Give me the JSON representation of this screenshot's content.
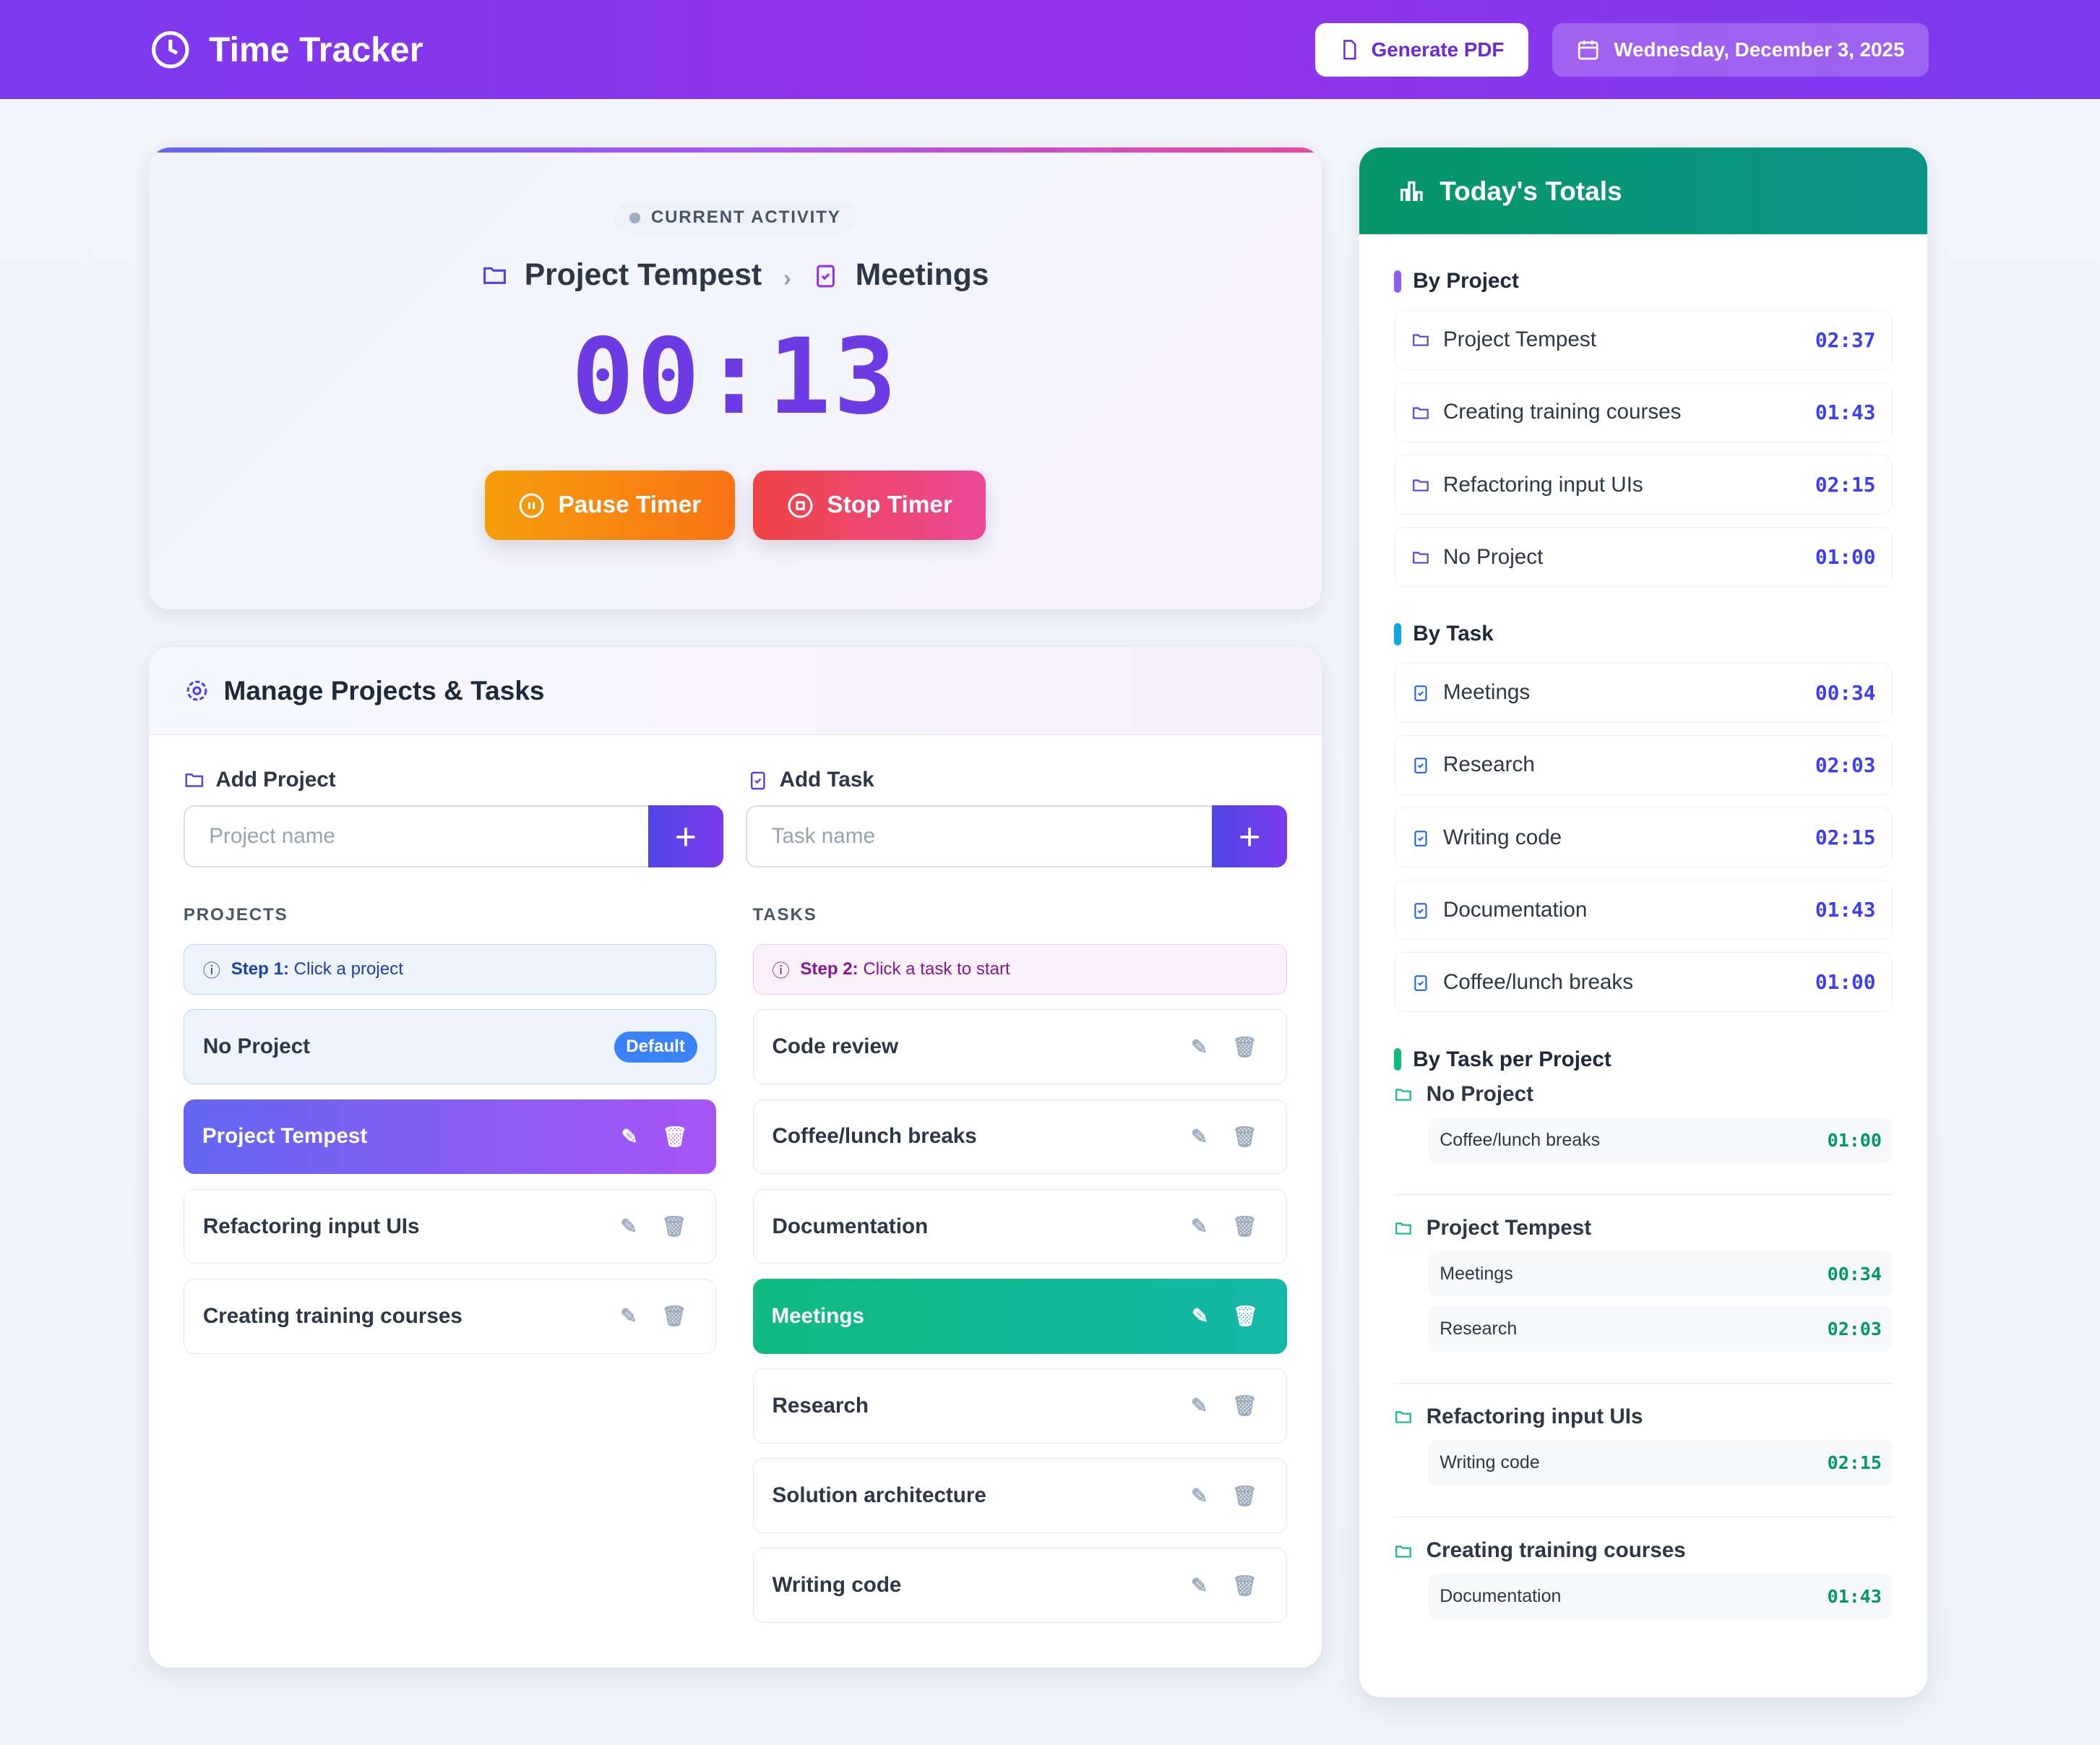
{
  "header": {
    "title": "Time Tracker",
    "pdf_label": "Generate PDF",
    "date": "Wednesday, December 3, 2025"
  },
  "timer": {
    "status": "CURRENT ACTIVITY",
    "project": "Project Tempest",
    "task": "Meetings",
    "elapsed": "00:13",
    "pause_label": "Pause Timer",
    "stop_label": "Stop Timer"
  },
  "manage": {
    "title": "Manage Projects & Tasks",
    "add_project": {
      "label": "Add Project",
      "placeholder": "Project name"
    },
    "add_task": {
      "label": "Add Task",
      "placeholder": "Task name"
    },
    "projects_heading": "PROJECTS",
    "tasks_heading": "TASKS",
    "project_step": {
      "bold": "Step 1:",
      "text": " Click a project"
    },
    "task_step": {
      "bold": "Step 2:",
      "text": " Click a task to start"
    },
    "default_badge": "Default",
    "projects": [
      {
        "name": "No Project",
        "default": true
      },
      {
        "name": "Project Tempest",
        "selected": true
      },
      {
        "name": "Refactoring input UIs"
      },
      {
        "name": "Creating training courses"
      }
    ],
    "tasks": [
      {
        "name": "Code review"
      },
      {
        "name": "Coffee/lunch breaks"
      },
      {
        "name": "Documentation"
      },
      {
        "name": "Meetings",
        "selected": true
      },
      {
        "name": "Research"
      },
      {
        "name": "Solution architecture"
      },
      {
        "name": "Writing code"
      }
    ]
  },
  "totals": {
    "title": "Today's Totals",
    "by_project_label": "By Project",
    "by_project": [
      {
        "name": "Project Tempest",
        "time": "02:37"
      },
      {
        "name": "Creating training courses",
        "time": "01:43"
      },
      {
        "name": "Refactoring input UIs",
        "time": "02:15"
      },
      {
        "name": "No Project",
        "time": "01:00"
      }
    ],
    "by_task_label": "By Task",
    "by_task": [
      {
        "name": "Meetings",
        "time": "00:34"
      },
      {
        "name": "Research",
        "time": "02:03"
      },
      {
        "name": "Writing code",
        "time": "02:15"
      },
      {
        "name": "Documentation",
        "time": "01:43"
      },
      {
        "name": "Coffee/lunch breaks",
        "time": "01:00"
      }
    ],
    "by_task_per_project_label": "By Task per Project",
    "by_task_per_project": [
      {
        "project": "No Project",
        "tasks": [
          {
            "name": "Coffee/lunch breaks",
            "time": "01:00"
          }
        ]
      },
      {
        "project": "Project Tempest",
        "tasks": [
          {
            "name": "Meetings",
            "time": "00:34"
          },
          {
            "name": "Research",
            "time": "02:03"
          }
        ]
      },
      {
        "project": "Refactoring input UIs",
        "tasks": [
          {
            "name": "Writing code",
            "time": "02:15"
          }
        ]
      },
      {
        "project": "Creating training courses",
        "tasks": [
          {
            "name": "Documentation",
            "time": "01:43"
          }
        ]
      }
    ]
  },
  "colors": {
    "header": "#7c3aed",
    "project_accent": "#8b5cf6",
    "task_accent": "#0ea5e9",
    "per_project_accent": "#10b981",
    "timer": "#6d3be3"
  }
}
